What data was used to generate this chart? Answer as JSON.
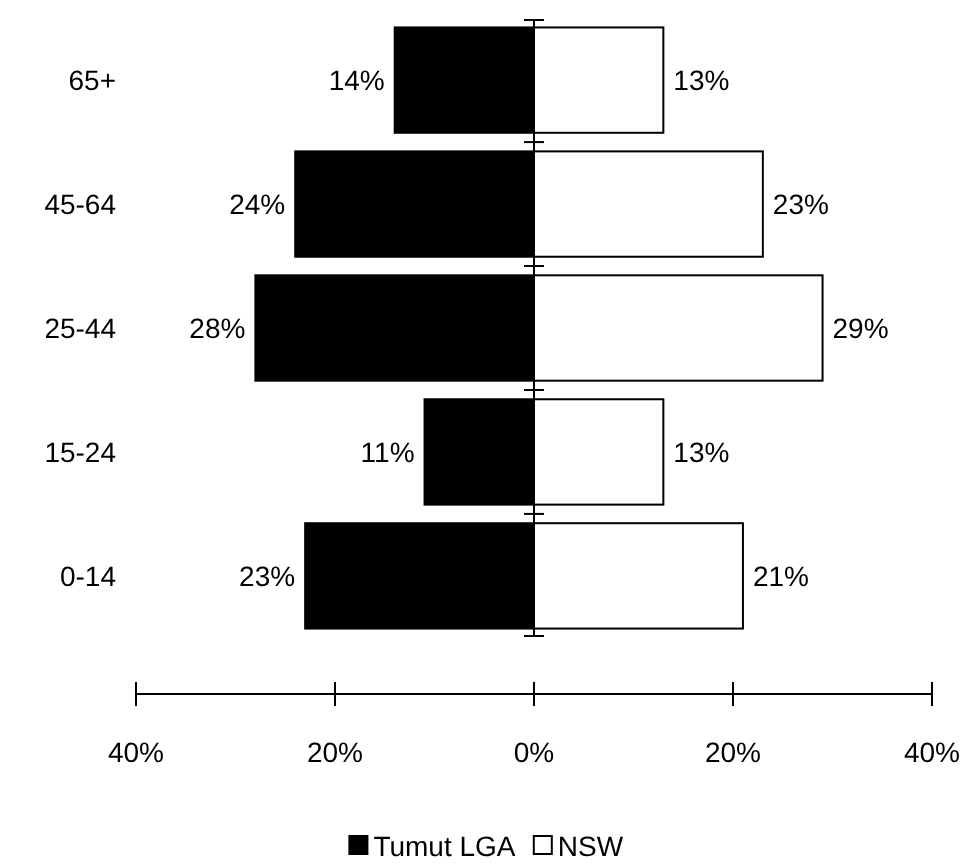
{
  "chart_data": {
    "type": "bar",
    "orientation": "horizontal",
    "categories": [
      "65+",
      "45-64",
      "25-44",
      "15-24",
      "0-14"
    ],
    "series": [
      {
        "name": "Tumut LGA",
        "color": "#000000",
        "values": [
          14,
          24,
          28,
          11,
          23
        ],
        "base": [
          -14,
          -24,
          -28,
          -11,
          -23
        ],
        "value_labels": [
          "14%",
          "24%",
          "28%",
          "11%",
          "23%"
        ]
      },
      {
        "name": "NSW",
        "color": "#ffffff",
        "values": [
          13,
          23,
          29,
          13,
          21
        ],
        "value_labels": [
          "13%",
          "23%",
          "29%",
          "13%",
          "21%"
        ]
      }
    ],
    "xlim": [
      -40,
      40
    ],
    "xticks": [
      {
        "value": -40,
        "label": "40%"
      },
      {
        "value": -20,
        "label": "20%"
      },
      {
        "value": 0,
        "label": "0%"
      },
      {
        "value": 20,
        "label": "20%"
      },
      {
        "value": 40,
        "label": "40%"
      }
    ],
    "legend": "bottom"
  }
}
